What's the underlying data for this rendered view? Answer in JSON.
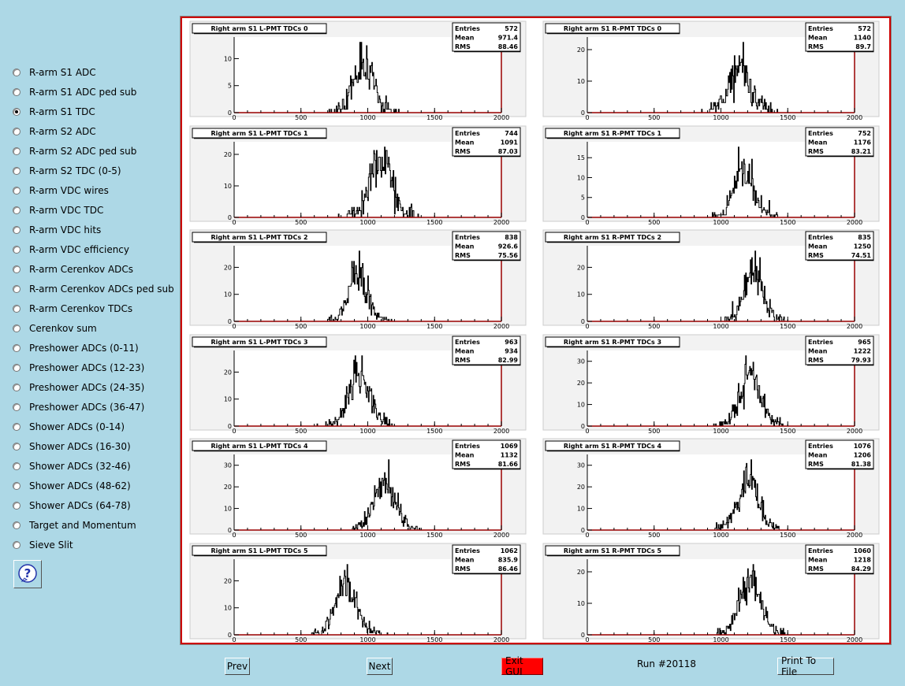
{
  "sidebar": {
    "items": [
      {
        "label": "R-arm S1 ADC",
        "checked": false
      },
      {
        "label": "R-arm S1 ADC ped sub",
        "checked": false
      },
      {
        "label": "R-arm S1 TDC",
        "checked": true
      },
      {
        "label": "R-arm S2 ADC",
        "checked": false
      },
      {
        "label": "R-arm S2 ADC ped sub",
        "checked": false
      },
      {
        "label": "R-arm S2 TDC (0-5)",
        "checked": false
      },
      {
        "label": "R-arm VDC wires",
        "checked": false
      },
      {
        "label": "R-arm VDC TDC",
        "checked": false
      },
      {
        "label": "R-arm VDC hits",
        "checked": false
      },
      {
        "label": "R-arm VDC efficiency",
        "checked": false
      },
      {
        "label": "R-arm Cerenkov ADCs",
        "checked": false
      },
      {
        "label": "R-arm Cerenkov ADCs ped sub",
        "checked": false
      },
      {
        "label": "R-arm Cerenkov TDCs",
        "checked": false
      },
      {
        "label": "Cerenkov sum",
        "checked": false
      },
      {
        "label": "Preshower ADCs (0-11)",
        "checked": false
      },
      {
        "label": "Preshower ADCs (12-23)",
        "checked": false
      },
      {
        "label": "Preshower ADCs (24-35)",
        "checked": false
      },
      {
        "label": "Preshower ADCs (36-47)",
        "checked": false
      },
      {
        "label": "Shower ADCs (0-14)",
        "checked": false
      },
      {
        "label": "Shower ADCs (16-30)",
        "checked": false
      },
      {
        "label": "Shower ADCs (32-46)",
        "checked": false
      },
      {
        "label": "Shower ADCs (48-62)",
        "checked": false
      },
      {
        "label": "Shower ADCs (64-78)",
        "checked": false
      },
      {
        "label": "Target and Momentum",
        "checked": false
      },
      {
        "label": "Sieve Slit",
        "checked": false
      }
    ],
    "help_icon": "question-mark-icon",
    "help_symbol": "?"
  },
  "buttons": {
    "prev": "Prev",
    "next": "Next",
    "exit": "Exit GUI",
    "print": "Print To File"
  },
  "run_label": "Run #20118",
  "colors": {
    "background": "#add8e6",
    "frame_red": "#cc0000",
    "exit_red": "#ff0000",
    "axis_frame": "#990000"
  },
  "chart_data": [
    {
      "type": "bar",
      "title": "Right arm S1 L-PMT TDCs 0",
      "entries": "572",
      "mean": "971.4",
      "rms": "88.46",
      "xlim": [
        0,
        2000
      ],
      "xticks": [
        0,
        500,
        1000,
        1500,
        2000
      ],
      "ylim": [
        0,
        14
      ],
      "yticks": [
        0,
        5,
        10
      ]
    },
    {
      "type": "bar",
      "title": "Right arm S1 R-PMT TDCs 0",
      "entries": "572",
      "mean": "1140",
      "rms": "89.7",
      "xlim": [
        0,
        2000
      ],
      "xticks": [
        0,
        500,
        1000,
        1500,
        2000
      ],
      "ylim": [
        0,
        24
      ],
      "yticks": [
        0,
        10,
        20
      ]
    },
    {
      "type": "bar",
      "title": "Right arm S1 L-PMT TDCs 1",
      "entries": "744",
      "mean": "1091",
      "rms": "87.03",
      "xlim": [
        0,
        2000
      ],
      "xticks": [
        0,
        500,
        1000,
        1500,
        2000
      ],
      "ylim": [
        0,
        24
      ],
      "yticks": [
        0,
        10,
        20
      ]
    },
    {
      "type": "bar",
      "title": "Right arm S1 R-PMT TDCs 1",
      "entries": "752",
      "mean": "1176",
      "rms": "83.21",
      "xlim": [
        0,
        2000
      ],
      "xticks": [
        0,
        500,
        1000,
        1500,
        2000
      ],
      "ylim": [
        0,
        19
      ],
      "yticks": [
        0,
        5,
        10,
        15
      ]
    },
    {
      "type": "bar",
      "title": "Right arm S1 L-PMT TDCs 2",
      "entries": "838",
      "mean": "926.6",
      "rms": "75.56",
      "xlim": [
        0,
        2000
      ],
      "xticks": [
        0,
        500,
        1000,
        1500,
        2000
      ],
      "ylim": [
        0,
        28
      ],
      "yticks": [
        0,
        10,
        20
      ]
    },
    {
      "type": "bar",
      "title": "Right arm S1 R-PMT TDCs 2",
      "entries": "835",
      "mean": "1250",
      "rms": "74.51",
      "xlim": [
        0,
        2000
      ],
      "xticks": [
        0,
        500,
        1000,
        1500,
        2000
      ],
      "ylim": [
        0,
        28
      ],
      "yticks": [
        0,
        10,
        20
      ]
    },
    {
      "type": "bar",
      "title": "Right arm S1 L-PMT TDCs 3",
      "entries": "963",
      "mean": "934",
      "rms": "82.99",
      "xlim": [
        0,
        2000
      ],
      "xticks": [
        0,
        500,
        1000,
        1500,
        2000
      ],
      "ylim": [
        0,
        28
      ],
      "yticks": [
        0,
        10,
        20
      ]
    },
    {
      "type": "bar",
      "title": "Right arm S1 R-PMT TDCs 3",
      "entries": "965",
      "mean": "1222",
      "rms": "79.93",
      "xlim": [
        0,
        2000
      ],
      "xticks": [
        0,
        500,
        1000,
        1500,
        2000
      ],
      "ylim": [
        0,
        35
      ],
      "yticks": [
        0,
        10,
        20,
        30
      ]
    },
    {
      "type": "bar",
      "title": "Right arm S1 L-PMT TDCs 4",
      "entries": "1069",
      "mean": "1132",
      "rms": "81.66",
      "xlim": [
        0,
        2000
      ],
      "xticks": [
        0,
        500,
        1000,
        1500,
        2000
      ],
      "ylim": [
        0,
        35
      ],
      "yticks": [
        0,
        10,
        20,
        30
      ]
    },
    {
      "type": "bar",
      "title": "Right arm S1 R-PMT TDCs 4",
      "entries": "1076",
      "mean": "1206",
      "rms": "81.38",
      "xlim": [
        0,
        2000
      ],
      "xticks": [
        0,
        500,
        1000,
        1500,
        2000
      ],
      "ylim": [
        0,
        35
      ],
      "yticks": [
        0,
        10,
        20,
        30
      ]
    },
    {
      "type": "bar",
      "title": "Right arm S1 L-PMT TDCs 5",
      "entries": "1062",
      "mean": "835.9",
      "rms": "86.46",
      "xlim": [
        0,
        2000
      ],
      "xticks": [
        0,
        500,
        1000,
        1500,
        2000
      ],
      "ylim": [
        0,
        28
      ],
      "yticks": [
        0,
        10,
        20
      ]
    },
    {
      "type": "bar",
      "title": "Right arm S1 R-PMT TDCs 5",
      "entries": "1060",
      "mean": "1218",
      "rms": "84.29",
      "xlim": [
        0,
        2000
      ],
      "xticks": [
        0,
        500,
        1000,
        1500,
        2000
      ],
      "ylim": [
        0,
        24
      ],
      "yticks": [
        0,
        10,
        20
      ]
    }
  ],
  "stats_labels": {
    "entries": "Entries",
    "mean": "Mean",
    "rms": "RMS"
  }
}
